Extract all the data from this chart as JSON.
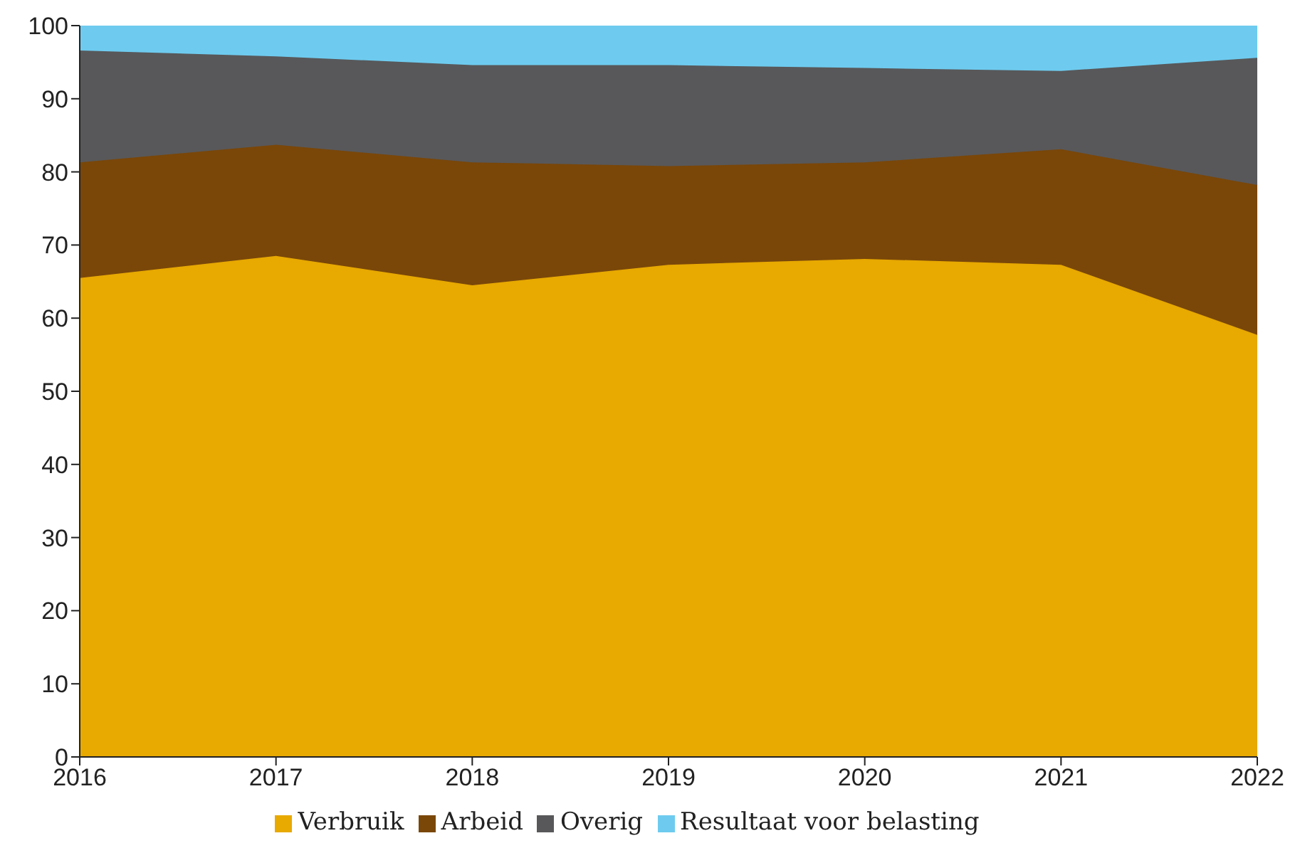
{
  "chart_data": {
    "type": "area",
    "stacked": true,
    "categories": [
      "2016",
      "2017",
      "2018",
      "2019",
      "2020",
      "2021",
      "2022"
    ],
    "series": [
      {
        "name": "Verbruik",
        "color": "#e8a900",
        "values": [
          65.5,
          68.5,
          64.5,
          67.3,
          68.1,
          67.3,
          57.7
        ]
      },
      {
        "name": "Arbeid",
        "color": "#7a4709",
        "values": [
          15.8,
          15.2,
          16.8,
          13.5,
          13.2,
          15.8,
          20.5
        ]
      },
      {
        "name": "Overig",
        "color": "#58585a",
        "values": [
          15.3,
          12.1,
          13.3,
          13.8,
          12.9,
          10.7,
          17.4
        ]
      },
      {
        "name": "Resultaat voor belasting",
        "color": "#6ecbef",
        "values": [
          3.4,
          4.2,
          5.4,
          5.4,
          5.8,
          6.2,
          4.4
        ]
      }
    ],
    "ylim": [
      0,
      100
    ],
    "yticks": [
      0,
      10,
      20,
      30,
      40,
      50,
      60,
      70,
      80,
      90,
      100
    ],
    "grid": false,
    "legend": "bottom"
  }
}
